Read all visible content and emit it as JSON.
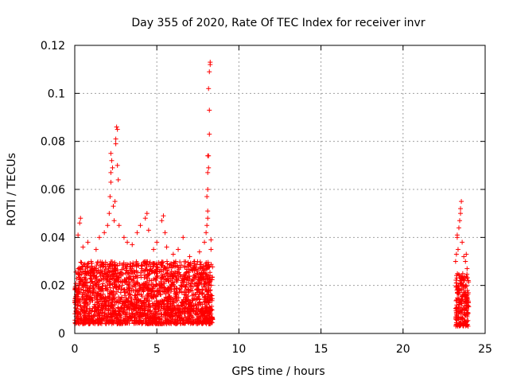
{
  "chart_data": {
    "type": "scatter",
    "title": "Day 355 of 2020, Rate Of TEC Index for receiver invr",
    "xlabel": "GPS time / hours",
    "ylabel": "ROTI / TECUs",
    "xlim": [
      0,
      25
    ],
    "ylim": [
      0,
      0.12
    ],
    "xticks": [
      0,
      5,
      10,
      15,
      20,
      25
    ],
    "xtick_labels": [
      "0",
      "5",
      "10",
      "15",
      "20",
      "25"
    ],
    "yticks": [
      0,
      0.02,
      0.04,
      0.06,
      0.08,
      0.1,
      0.12
    ],
    "ytick_labels": [
      "0",
      "0.02",
      "0.04",
      "0.06",
      "0.08",
      "0.1",
      "0.12"
    ],
    "grid": true,
    "marker": "+",
    "color": "#ff0000",
    "series": [
      {
        "name": "ROTI",
        "dense_bands": [
          {
            "x_range": [
              0.0,
              8.4
            ],
            "y_range": [
              0.004,
              0.03
            ]
          },
          {
            "x_range": [
              23.2,
              24.0
            ],
            "y_range": [
              0.003,
              0.025
            ]
          }
        ],
        "points": [
          [
            0.2,
            0.041
          ],
          [
            0.3,
            0.046
          ],
          [
            0.35,
            0.048
          ],
          [
            0.5,
            0.036
          ],
          [
            0.8,
            0.038
          ],
          [
            1.0,
            0.03
          ],
          [
            1.3,
            0.035
          ],
          [
            1.5,
            0.04
          ],
          [
            1.8,
            0.042
          ],
          [
            2.0,
            0.045
          ],
          [
            2.1,
            0.05
          ],
          [
            2.15,
            0.057
          ],
          [
            2.2,
            0.063
          ],
          [
            2.2,
            0.067
          ],
          [
            2.25,
            0.072
          ],
          [
            2.2,
            0.075
          ],
          [
            2.3,
            0.069
          ],
          [
            2.35,
            0.053
          ],
          [
            2.4,
            0.047
          ],
          [
            2.45,
            0.055
          ],
          [
            2.5,
            0.079
          ],
          [
            2.5,
            0.081
          ],
          [
            2.55,
            0.086
          ],
          [
            2.6,
            0.085
          ],
          [
            2.6,
            0.07
          ],
          [
            2.65,
            0.064
          ],
          [
            2.7,
            0.045
          ],
          [
            3.0,
            0.04
          ],
          [
            3.2,
            0.038
          ],
          [
            3.5,
            0.037
          ],
          [
            3.8,
            0.042
          ],
          [
            4.0,
            0.045
          ],
          [
            4.3,
            0.048
          ],
          [
            4.4,
            0.05
          ],
          [
            4.5,
            0.043
          ],
          [
            4.8,
            0.035
          ],
          [
            5.0,
            0.038
          ],
          [
            5.3,
            0.047
          ],
          [
            5.4,
            0.049
          ],
          [
            5.5,
            0.042
          ],
          [
            5.6,
            0.036
          ],
          [
            6.0,
            0.033
          ],
          [
            6.3,
            0.035
          ],
          [
            6.6,
            0.04
          ],
          [
            7.0,
            0.032
          ],
          [
            7.3,
            0.03
          ],
          [
            7.6,
            0.034
          ],
          [
            7.9,
            0.038
          ],
          [
            8.0,
            0.042
          ],
          [
            8.05,
            0.045
          ],
          [
            8.1,
            0.048
          ],
          [
            8.1,
            0.051
          ],
          [
            8.05,
            0.057
          ],
          [
            8.1,
            0.06
          ],
          [
            8.1,
            0.067
          ],
          [
            8.15,
            0.069
          ],
          [
            8.1,
            0.074
          ],
          [
            8.15,
            0.074
          ],
          [
            8.2,
            0.083
          ],
          [
            8.2,
            0.093
          ],
          [
            8.15,
            0.102
          ],
          [
            8.2,
            0.109
          ],
          [
            8.25,
            0.112
          ],
          [
            8.25,
            0.113
          ],
          [
            8.3,
            0.039
          ],
          [
            8.3,
            0.035
          ],
          [
            23.2,
            0.03
          ],
          [
            23.25,
            0.033
          ],
          [
            23.3,
            0.041
          ],
          [
            23.3,
            0.04
          ],
          [
            23.35,
            0.035
          ],
          [
            23.4,
            0.044
          ],
          [
            23.45,
            0.047
          ],
          [
            23.5,
            0.05
          ],
          [
            23.5,
            0.052
          ],
          [
            23.55,
            0.055
          ],
          [
            23.6,
            0.038
          ],
          [
            23.7,
            0.032
          ],
          [
            23.8,
            0.03
          ],
          [
            23.85,
            0.033
          ],
          [
            23.9,
            0.027
          ]
        ]
      }
    ]
  }
}
